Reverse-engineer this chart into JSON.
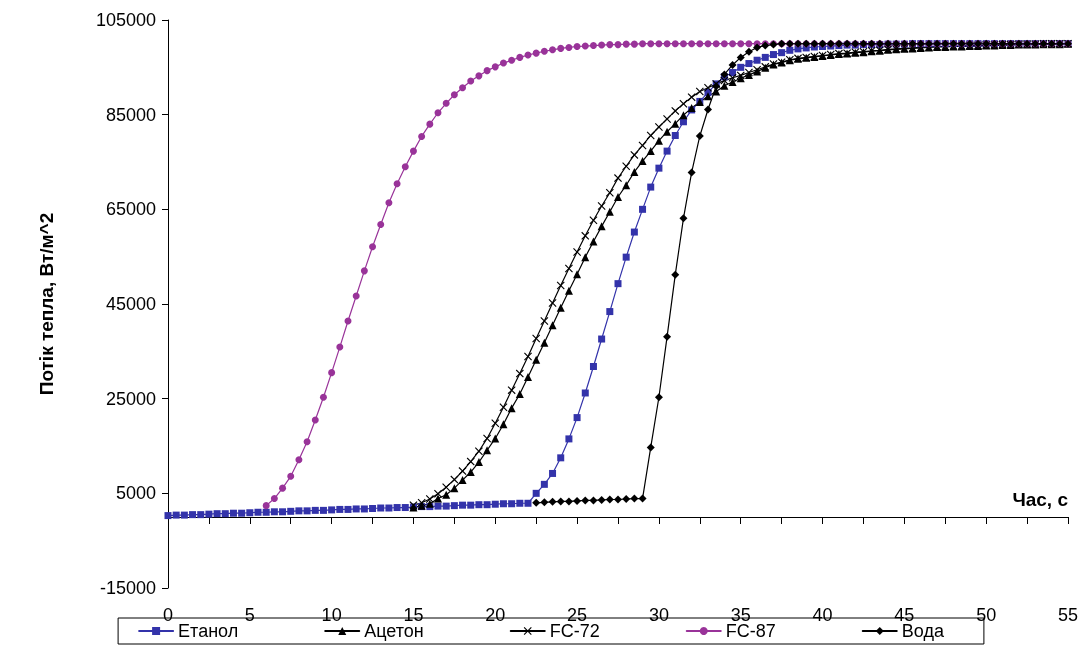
{
  "chart_data": {
    "type": "line",
    "xlabel": "Час, с",
    "ylabel": "Потік тепла, Вт/м^2",
    "x": [
      0,
      0.5,
      1,
      1.5,
      2,
      2.5,
      3,
      3.5,
      4,
      4.5,
      5,
      5.5,
      6,
      6.5,
      7,
      7.5,
      8,
      8.5,
      9,
      9.5,
      10,
      10.5,
      11,
      11.5,
      12,
      12.5,
      13,
      13.5,
      14,
      14.5,
      15,
      15.5,
      16,
      16.5,
      17,
      17.5,
      18,
      18.5,
      19,
      19.5,
      20,
      20.5,
      21,
      21.5,
      22,
      22.5,
      23,
      23.5,
      24,
      24.5,
      25,
      25.5,
      26,
      26.5,
      27,
      27.5,
      28,
      28.5,
      29,
      29.5,
      30,
      30.5,
      31,
      31.5,
      32,
      32.5,
      33,
      33.5,
      34,
      34.5,
      35,
      35.5,
      36,
      36.5,
      37,
      37.5,
      38,
      38.5,
      39,
      39.5,
      40,
      40.5,
      41,
      41.5,
      42,
      42.5,
      43,
      43.5,
      44,
      44.5,
      45,
      45.5,
      46,
      46.5,
      47,
      47.5,
      48,
      48.5,
      49,
      49.5,
      50,
      50.5,
      51,
      51.5,
      52,
      52.5,
      53,
      53.5,
      54,
      54.5,
      55
    ],
    "series": [
      {
        "name": "Етанол",
        "color": "#3333aa",
        "marker": "square",
        "values": [
          300,
          400,
          400,
          500,
          500,
          600,
          700,
          700,
          800,
          800,
          900,
          1000,
          1000,
          1100,
          1100,
          1200,
          1300,
          1300,
          1400,
          1400,
          1500,
          1600,
          1600,
          1700,
          1700,
          1800,
          1900,
          1900,
          2000,
          2000,
          2100,
          2200,
          2200,
          2300,
          2300,
          2400,
          2500,
          2500,
          2600,
          2600,
          2700,
          2800,
          2800,
          2900,
          2900,
          5000,
          6900,
          9200,
          12500,
          16500,
          21000,
          26200,
          31800,
          37600,
          43400,
          49300,
          54900,
          60200,
          65000,
          69700,
          73700,
          77300,
          80600,
          83500,
          86000,
          87800,
          89700,
          91500,
          93000,
          93900,
          95000,
          95800,
          96500,
          97100,
          97700,
          98100,
          98600,
          98900,
          99100,
          99300,
          99400,
          99500,
          99600,
          99700,
          99700,
          99800,
          99800,
          99800,
          99900,
          99900,
          99900,
          100000,
          100000,
          100000,
          100000,
          100000,
          100000,
          100000,
          100000,
          100000,
          100000,
          100000,
          100000,
          100000,
          100000,
          100000,
          100000,
          100000,
          100000,
          100000,
          100000
        ]
      },
      {
        "name": "Ацетон",
        "color": "#000000",
        "marker": "triangle",
        "values": [
          null,
          null,
          null,
          null,
          null,
          null,
          null,
          null,
          null,
          null,
          null,
          null,
          null,
          null,
          null,
          null,
          null,
          null,
          null,
          null,
          null,
          null,
          null,
          null,
          null,
          null,
          null,
          null,
          null,
          null,
          2000,
          2400,
          2800,
          3900,
          4700,
          6100,
          7800,
          9500,
          11600,
          14100,
          16600,
          19600,
          23000,
          26000,
          29600,
          33200,
          36800,
          40500,
          44200,
          47800,
          51300,
          54900,
          58200,
          61400,
          64500,
          67600,
          70100,
          72900,
          75200,
          77300,
          79500,
          81400,
          83100,
          84900,
          86400,
          87700,
          88900,
          89900,
          91100,
          91900,
          92700,
          93400,
          94100,
          94900,
          95600,
          96000,
          96500,
          96800,
          97000,
          97200,
          97400,
          97600,
          97800,
          97900,
          98100,
          98200,
          98400,
          98500,
          98700,
          98800,
          98900,
          99000,
          99100,
          99200,
          99300,
          99300,
          99400,
          99400,
          99500,
          99500,
          99600,
          99600,
          99700,
          99700,
          99800,
          99800,
          99800,
          99900,
          99900,
          99900,
          100000
        ]
      },
      {
        "name": "FC-72",
        "color": "#000000",
        "marker": "cross",
        "values": [
          null,
          null,
          null,
          null,
          null,
          null,
          null,
          null,
          null,
          null,
          null,
          null,
          null,
          null,
          null,
          null,
          null,
          null,
          null,
          null,
          null,
          null,
          null,
          null,
          null,
          null,
          null,
          null,
          null,
          null,
          2500,
          3000,
          3800,
          4900,
          6300,
          7900,
          9700,
          11700,
          13900,
          16600,
          19800,
          23200,
          26800,
          30300,
          33900,
          37700,
          41400,
          45200,
          48900,
          52500,
          56000,
          59400,
          62700,
          65700,
          68500,
          71600,
          74100,
          76500,
          78500,
          80600,
          82400,
          84100,
          85800,
          87300,
          88700,
          89900,
          90700,
          91500,
          92200,
          92800,
          93300,
          93900,
          94500,
          95100,
          95700,
          96100,
          96600,
          96900,
          97100,
          97300,
          97500,
          97700,
          97900,
          98000,
          98200,
          98300,
          98500,
          98600,
          98800,
          98900,
          99000,
          99100,
          99200,
          99300,
          99400,
          99400,
          99500,
          99500,
          99600,
          99600,
          99700,
          99700,
          99800,
          99800,
          99900,
          99900,
          99900,
          100000,
          100000,
          100000,
          100000
        ]
      },
      {
        "name": "FC-87",
        "color": "#993399",
        "marker": "circle",
        "values": [
          null,
          null,
          null,
          null,
          null,
          null,
          null,
          null,
          null,
          null,
          null,
          null,
          2400,
          3900,
          6100,
          8600,
          12100,
          15900,
          20500,
          25300,
          30500,
          35900,
          41400,
          46700,
          52000,
          57100,
          61800,
          66400,
          70400,
          74000,
          77300,
          80400,
          83000,
          85400,
          87400,
          89200,
          90700,
          92100,
          93200,
          94300,
          95100,
          95900,
          96500,
          97100,
          97600,
          98000,
          98400,
          98700,
          99000,
          99200,
          99400,
          99500,
          99600,
          99700,
          99800,
          99800,
          99900,
          99900,
          100000,
          100000,
          100000,
          100000,
          100000,
          100000,
          100000,
          100000,
          100000,
          100000,
          100000,
          100000,
          100000,
          100000,
          100000,
          100000,
          100000,
          100000,
          100000,
          100000,
          100000,
          100000,
          100000,
          100000,
          100000,
          100000,
          100000,
          100000,
          100000,
          100000,
          100000,
          100000,
          100000,
          100000,
          100000,
          100000,
          100000,
          100000,
          100000,
          100000,
          100000,
          100000,
          100000,
          100000,
          100000,
          100000,
          100000,
          100000,
          100000,
          100000,
          100000,
          100000,
          100000
        ]
      },
      {
        "name": "Вода",
        "color": "#000000",
        "marker": "diamond",
        "values": [
          null,
          null,
          null,
          null,
          null,
          null,
          null,
          null,
          null,
          null,
          null,
          null,
          null,
          null,
          null,
          null,
          null,
          null,
          null,
          null,
          null,
          null,
          null,
          null,
          null,
          null,
          null,
          null,
          null,
          null,
          null,
          null,
          null,
          null,
          null,
          null,
          null,
          null,
          null,
          null,
          null,
          null,
          null,
          null,
          null,
          3000,
          3100,
          3200,
          3300,
          3300,
          3400,
          3500,
          3500,
          3600,
          3700,
          3700,
          3800,
          3900,
          3900,
          14700,
          25300,
          38100,
          51200,
          63100,
          72800,
          80500,
          86100,
          91000,
          93500,
          95500,
          97100,
          98300,
          99200,
          99600,
          99800,
          100000,
          100000,
          100000,
          100000,
          100000,
          100000,
          100000,
          100000,
          100000,
          100000,
          100000,
          100000,
          100000,
          100000,
          100000,
          100000,
          100000,
          100000,
          100000,
          100000,
          100000,
          100000,
          100000,
          100000,
          100000,
          100000,
          100000,
          100000,
          100000,
          100000,
          100000,
          100000,
          100000,
          100000,
          100000,
          100000
        ]
      }
    ],
    "xlim": [
      0,
      55
    ],
    "xticks": [
      0,
      {
        "value": 2.5,
        "label": null
      },
      5,
      {
        "value": 7.5,
        "label": null
      },
      10,
      {
        "value": 12.5,
        "label": null
      },
      15,
      {
        "value": 17.5,
        "label": null
      },
      20,
      {
        "value": 22.5,
        "label": null
      },
      25,
      {
        "value": 27.5,
        "label": null
      },
      30,
      {
        "value": 32.5,
        "label": null
      },
      35,
      {
        "value": 37.5,
        "label": null
      },
      40,
      {
        "value": 42.5,
        "label": null
      },
      45,
      {
        "value": 47.5,
        "label": null
      },
      50,
      {
        "value": 52.5,
        "label": null
      },
      55
    ],
    "ylim": [
      -15000,
      105000
    ],
    "yticks": [
      -15000,
      5000,
      25000,
      45000,
      65000,
      85000,
      105000
    ],
    "grid": false,
    "legend": "bottom",
    "line_style": "solid"
  }
}
